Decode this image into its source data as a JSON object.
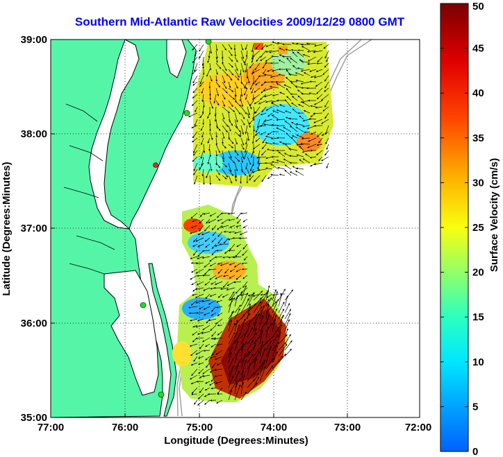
{
  "title": "Southern Mid-Atlantic Raw Velocities 2009/12/29 0800 GMT",
  "x_axis": {
    "label": "Longitude (Degrees:Minutes)",
    "ticks": [
      "77:00",
      "76:00",
      "75:00",
      "74:00",
      "73:00",
      "72:00"
    ]
  },
  "y_axis": {
    "label": "Latitude (Degrees:Minutes)",
    "ticks": [
      "39:00",
      "38:00",
      "37:00",
      "36:00",
      "35:00"
    ]
  },
  "colorbar": {
    "label": "Surface Velocity (cm/s)",
    "ticks": [
      "0",
      "5",
      "10",
      "15",
      "20",
      "25",
      "30",
      "35",
      "40",
      "45",
      "50"
    ],
    "min": 0,
    "max": 50
  },
  "colors": {
    "land": "#55f5a8",
    "coastline": "#000000",
    "bathymetry": "#a0a0a0",
    "station_green": "#22dd22",
    "station_red": "#ee2222"
  }
}
